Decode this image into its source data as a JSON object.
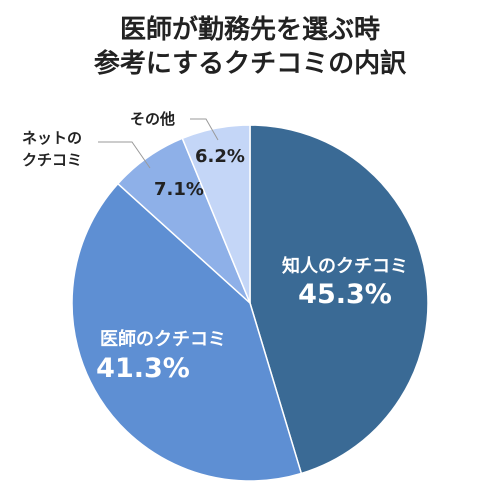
{
  "chart_data": {
    "type": "pie",
    "title_lines": [
      "医師が勤務先を選ぶ時",
      "参考にするクチコミの内訳"
    ],
    "slices": [
      {
        "label_lines": [
          "知人のクチコミ"
        ],
        "value": 45.3,
        "value_label": "45.3%",
        "color": "#3a6a95",
        "label_color": "#ffffff",
        "label_placement": "inside"
      },
      {
        "label_lines": [
          "医師のクチコミ"
        ],
        "value": 41.3,
        "value_label": "41.3%",
        "color": "#5e8fd3",
        "label_color": "#ffffff",
        "label_placement": "inside"
      },
      {
        "label_lines": [
          "ネットの",
          "クチコミ"
        ],
        "value": 7.1,
        "value_label": "7.1%",
        "color": "#8eb0e8",
        "label_color": "#222222",
        "label_placement": "outside"
      },
      {
        "label_lines": [
          "その他"
        ],
        "value": 6.2,
        "value_label": "6.2%",
        "color": "#c4d6f7",
        "label_color": "#222222",
        "label_placement": "outside"
      }
    ],
    "start_angle_deg": 0,
    "direction": "clockwise",
    "legend": "none"
  }
}
